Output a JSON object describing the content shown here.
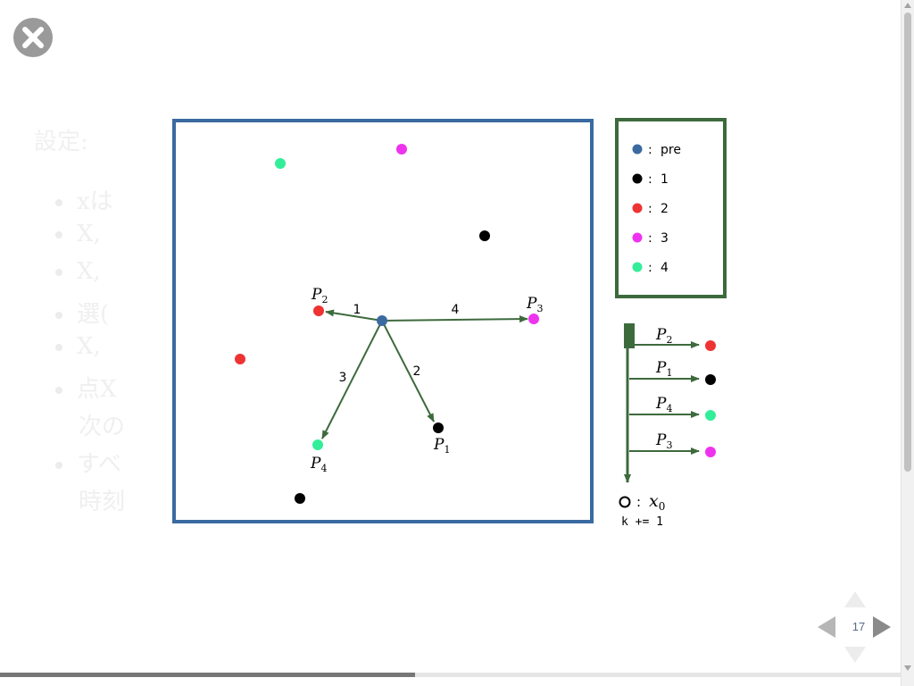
{
  "background": {
    "title": "設定:",
    "bullets": [
      {
        "text": "xは"
      },
      {
        "text": "X,"
      },
      {
        "text": "X,"
      },
      {
        "text": "選("
      },
      {
        "text": "X,"
      },
      {
        "text": "点X"
      },
      {
        "text": "次の"
      },
      {
        "text": "すべ"
      },
      {
        "text": "時刻"
      }
    ]
  },
  "colors": {
    "frame": "#3a6aa0",
    "legend_frame": "#3d6a3d",
    "arrow": "#3d6a3d",
    "pre": "#3a6aa0",
    "cat1": "#000000",
    "cat2": "#ee3333",
    "cat3": "#ee33ee",
    "cat4": "#33ee99"
  },
  "legend": {
    "items": [
      {
        "key": "pre",
        "sep": ":",
        "label": "pre"
      },
      {
        "key": "cat1",
        "sep": ":",
        "label": "1"
      },
      {
        "key": "cat2",
        "sep": ":",
        "label": "2"
      },
      {
        "key": "cat3",
        "sep": ":",
        "label": "3"
      },
      {
        "key": "cat4",
        "sep": ":",
        "label": "4"
      }
    ]
  },
  "points": {
    "labels": {
      "p2": {
        "base": "P",
        "sub": "2"
      },
      "p3": {
        "base": "P",
        "sub": "3"
      },
      "p4": {
        "base": "P",
        "sub": "4"
      },
      "p1": {
        "base": "P",
        "sub": "1"
      }
    },
    "arrow_labels": {
      "to_p2": "1",
      "to_p1": "2",
      "to_p4": "3",
      "to_p3": "4"
    }
  },
  "queue": {
    "rows": [
      {
        "base": "P",
        "sub": "2",
        "key": "cat2"
      },
      {
        "base": "P",
        "sub": "1",
        "key": "cat1"
      },
      {
        "base": "P",
        "sub": "4",
        "key": "cat4"
      },
      {
        "base": "P",
        "sub": "3",
        "key": "cat3"
      }
    ],
    "result_sep": ":",
    "result_base": "x",
    "result_sub": "0",
    "increment": "k += 1"
  },
  "nav": {
    "page_number": "17"
  },
  "progress": {
    "fraction": 0.46
  },
  "icons": {
    "close": "close-icon"
  }
}
